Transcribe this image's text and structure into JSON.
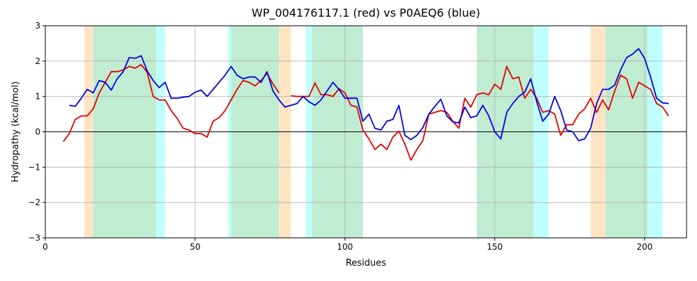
{
  "chart_data": {
    "type": "line",
    "title": "WP_004176117.1 (red) vs P0AEQ6 (blue)",
    "x_label": "Residues",
    "y_label": "Hydropathy (kcal/mol)",
    "xlim": [
      0,
      214
    ],
    "ylim": [
      -3,
      3
    ],
    "xticks": [
      0,
      50,
      100,
      150,
      200
    ],
    "yticks": [
      {
        "value": -3,
        "label": "−3"
      },
      {
        "value": -2,
        "label": "−2"
      },
      {
        "value": -1,
        "label": "−1"
      },
      0,
      1,
      2,
      3
    ],
    "grid": true,
    "hline": 0,
    "spans": [
      {
        "x": [
          13,
          16
        ],
        "color": "#ffe4c4"
      },
      {
        "x": [
          16,
          37
        ],
        "color": "#c0ecd2"
      },
      {
        "x": [
          37,
          40
        ],
        "color": "#c0ffff"
      },
      {
        "x": [
          61,
          62
        ],
        "color": "#c0ffff"
      },
      {
        "x": [
          62,
          78
        ],
        "color": "#c0ecd2"
      },
      {
        "x": [
          78,
          82
        ],
        "color": "#ffe4c4"
      },
      {
        "x": [
          87,
          89
        ],
        "color": "#c0ffff"
      },
      {
        "x": [
          89,
          106
        ],
        "color": "#c0ecd2"
      },
      {
        "x": [
          144,
          163
        ],
        "color": "#c0ecd2"
      },
      {
        "x": [
          163,
          168
        ],
        "color": "#c0ffff"
      },
      {
        "x": [
          182,
          187
        ],
        "color": "#ffe4c4"
      },
      {
        "x": [
          187,
          201
        ],
        "color": "#c0ecd2"
      },
      {
        "x": [
          201,
          206
        ],
        "color": "#c0ffff"
      }
    ],
    "x": [
      6,
      8,
      10,
      12,
      14,
      16,
      18,
      20,
      22,
      24,
      26,
      28,
      30,
      32,
      34,
      36,
      38,
      40,
      42,
      44,
      46,
      48,
      50,
      52,
      54,
      56,
      58,
      60,
      62,
      64,
      66,
      68,
      70,
      72,
      74,
      76,
      78,
      80,
      82,
      84,
      86,
      88,
      90,
      92,
      94,
      96,
      98,
      100,
      102,
      104,
      106,
      108,
      110,
      112,
      114,
      116,
      118,
      120,
      122,
      124,
      126,
      128,
      130,
      132,
      134,
      136,
      138,
      140,
      142,
      144,
      146,
      148,
      150,
      152,
      154,
      156,
      158,
      160,
      162,
      164,
      166,
      168,
      170,
      172,
      174,
      176,
      178,
      180,
      182,
      184,
      186,
      188,
      190,
      192,
      194,
      196,
      198,
      200,
      202,
      204,
      206,
      208
    ],
    "series": [
      {
        "color": "#e00000",
        "values": [
          -0.28,
          -0.05,
          0.35,
          0.45,
          0.45,
          0.65,
          1.1,
          1.4,
          1.7,
          1.7,
          1.75,
          1.85,
          1.8,
          1.9,
          1.68,
          1.0,
          0.9,
          0.9,
          0.6,
          0.38,
          0.1,
          0.05,
          -0.05,
          -0.05,
          -0.15,
          0.3,
          0.4,
          0.6,
          0.9,
          1.2,
          1.45,
          1.4,
          1.3,
          1.45,
          1.65,
          1.35,
          1.1,
          null,
          1.02,
          1.0,
          1.0,
          1.0,
          1.38,
          1.05,
          1.05,
          1.0,
          1.22,
          1.1,
          0.75,
          0.7,
          0.05,
          -0.2,
          -0.5,
          -0.35,
          -0.5,
          -0.15,
          0.02,
          -0.35,
          -0.8,
          -0.5,
          -0.25,
          0.5,
          0.55,
          0.6,
          0.55,
          0.3,
          0.1,
          0.95,
          0.7,
          1.05,
          1.1,
          1.05,
          1.35,
          1.2,
          1.85,
          1.5,
          1.55,
          0.95,
          1.2,
          0.95,
          0.55,
          0.6,
          0.5,
          -0.1,
          0.2,
          0.2,
          0.5,
          0.65,
          0.95,
          0.55,
          0.9,
          0.62,
          1.15,
          1.6,
          1.5,
          0.95,
          1.4,
          1.3,
          1.2,
          0.8,
          0.7,
          0.45
        ]
      },
      {
        "color": "#0000e0",
        "values": [
          null,
          0.75,
          0.72,
          0.95,
          1.2,
          1.1,
          1.45,
          1.4,
          1.18,
          1.5,
          1.7,
          2.1,
          2.08,
          2.15,
          1.72,
          1.45,
          1.25,
          1.4,
          0.95,
          0.95,
          0.98,
          1.0,
          1.12,
          1.18,
          1.0,
          1.2,
          1.4,
          1.6,
          1.85,
          1.6,
          1.5,
          1.55,
          1.55,
          1.4,
          1.7,
          1.15,
          0.9,
          0.7,
          0.75,
          0.8,
          1.0,
          0.85,
          0.75,
          0.9,
          1.15,
          1.4,
          1.2,
          0.95,
          0.95,
          0.95,
          0.3,
          0.5,
          0.1,
          0.05,
          0.3,
          0.35,
          0.75,
          -0.1,
          -0.22,
          -0.1,
          0.12,
          0.5,
          0.72,
          0.92,
          0.45,
          0.28,
          0.25,
          0.7,
          0.4,
          0.45,
          0.75,
          0.45,
          0.0,
          -0.2,
          0.55,
          0.8,
          1.0,
          1.12,
          1.5,
          0.85,
          0.3,
          0.5,
          1.0,
          0.6,
          0.05,
          0.0,
          -0.25,
          -0.2,
          0.1,
          0.8,
          1.2,
          1.2,
          1.32,
          1.75,
          2.1,
          2.2,
          2.35,
          2.08,
          1.55,
          0.95,
          0.82,
          0.8
        ]
      }
    ]
  }
}
